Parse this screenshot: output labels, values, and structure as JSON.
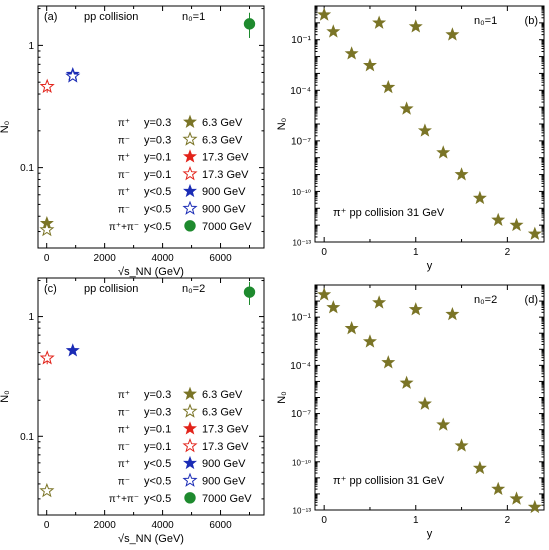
{
  "colors": {
    "olive": "#7a7426",
    "red": "#e2231a",
    "blue": "#1a2bb5",
    "green": "#1e8a2e",
    "axis": "#000000"
  },
  "chart_data": [
    {
      "id": "a",
      "type": "scatter",
      "panel_label": "(a)",
      "title": "pp collision",
      "annotation": "n₀=1",
      "xlabel": "√s_NN (GeV)",
      "ylabel": "N₀",
      "xlim": [
        -300,
        7500
      ],
      "ylim": [
        0.022,
        2.1
      ],
      "yscale": "log",
      "x_ticks": [
        0,
        2000,
        4000,
        6000
      ],
      "x_tick_labels": [
        "0",
        "2000",
        "4000",
        "6000"
      ],
      "y_ticks": [
        0.1,
        1
      ],
      "y_tick_labels": [
        "0.1",
        "1"
      ],
      "legend": {
        "position": "lower-right",
        "entries": [
          {
            "particle": "π⁺",
            "cut": "y=0.3",
            "energy": "6.3 GeV",
            "marker": "star",
            "fill": "olive"
          },
          {
            "particle": "π⁻",
            "cut": "y=0.3",
            "energy": "6.3 GeV",
            "marker": "star-open",
            "fill": "olive"
          },
          {
            "particle": "π⁺",
            "cut": "y=0.1",
            "energy": "17.3 GeV",
            "marker": "star",
            "fill": "red"
          },
          {
            "particle": "π⁻",
            "cut": "y=0.1",
            "energy": "17.3 GeV",
            "marker": "star-open",
            "fill": "red"
          },
          {
            "particle": "π⁺",
            "cut": "y<0.5",
            "energy": "900 GeV",
            "marker": "star",
            "fill": "blue"
          },
          {
            "particle": "π⁻",
            "cut": "y<0.5",
            "energy": "900 GeV",
            "marker": "star-open",
            "fill": "blue"
          },
          {
            "particle": "π⁺+π⁻",
            "cut": "y<0.5",
            "energy": "7000 GeV",
            "marker": "circle",
            "fill": "green"
          }
        ]
      },
      "points": [
        {
          "x": 6.3,
          "y": 0.035,
          "marker": "star",
          "fill": "olive",
          "err": 0
        },
        {
          "x": 6.3,
          "y": 0.031,
          "marker": "star-open",
          "fill": "olive",
          "err": 0
        },
        {
          "x": 17.3,
          "y": 0.46,
          "marker": "star-open",
          "fill": "red",
          "err": 0.05
        },
        {
          "x": 900,
          "y": 0.58,
          "marker": "star",
          "fill": "blue",
          "err": 0.03
        },
        {
          "x": 900,
          "y": 0.56,
          "marker": "star-open",
          "fill": "blue",
          "err": 0
        },
        {
          "x": 7000,
          "y": 1.5,
          "marker": "circle",
          "fill": "green",
          "err": 0.35
        }
      ]
    },
    {
      "id": "b",
      "type": "scatter",
      "panel_label": "(b)",
      "annotation": "n₀=1",
      "bottom_note": "π⁺    pp collision   31 GeV",
      "xlabel": "y",
      "ylabel": "N₀",
      "xlim": [
        -0.1,
        2.4
      ],
      "ylim": [
        1e-13,
        10
      ],
      "yscale": "log",
      "x_ticks": [
        0,
        1,
        2
      ],
      "x_tick_labels": [
        "0",
        "1",
        "2"
      ],
      "y_ticks": [
        1e-13,
        1e-10,
        1e-07,
        0.0001,
        0.1
      ],
      "y_tick_labels": [
        "10⁻¹³",
        "10⁻¹⁰",
        "10⁻⁷",
        "10⁻⁴",
        "10⁻¹"
      ],
      "series": [
        {
          "marker": "star",
          "fill": "olive",
          "x": [
            0,
            0.1,
            0.3,
            0.5,
            0.7,
            0.9,
            1.1,
            1.3,
            1.5,
            1.7,
            1.9,
            2.1,
            2.3
          ],
          "y": [
            3,
            0.3,
            0.015,
            0.003,
            0.00015,
            8e-06,
            4e-07,
            2e-08,
            1e-09,
            4e-11,
            2e-12,
            1e-12,
            3e-13
          ]
        },
        {
          "marker": "star",
          "fill": "olive",
          "x": [
            0.6,
            1.0,
            1.4
          ],
          "y": [
            1.0,
            0.6,
            0.2
          ]
        }
      ]
    },
    {
      "id": "c",
      "type": "scatter",
      "panel_label": "(c)",
      "title": "pp collision",
      "annotation": "n₀=2",
      "xlabel": "√s_NN (GeV)",
      "ylabel": "N₀",
      "xlim": [
        -300,
        7500
      ],
      "ylim": [
        0.022,
        2.1
      ],
      "yscale": "log",
      "x_ticks": [
        0,
        2000,
        4000,
        6000
      ],
      "x_tick_labels": [
        "0",
        "2000",
        "4000",
        "6000"
      ],
      "y_ticks": [
        0.1,
        1
      ],
      "y_tick_labels": [
        "0.1",
        "1"
      ],
      "legend": {
        "position": "lower-right",
        "entries": [
          {
            "particle": "π⁺",
            "cut": "y=0.3",
            "energy": "6.3 GeV",
            "marker": "star",
            "fill": "olive"
          },
          {
            "particle": "π⁻",
            "cut": "y=0.3",
            "energy": "6.3 GeV",
            "marker": "star-open",
            "fill": "olive"
          },
          {
            "particle": "π⁺",
            "cut": "y=0.1",
            "energy": "17.3 GeV",
            "marker": "star",
            "fill": "red"
          },
          {
            "particle": "π⁻",
            "cut": "y=0.1",
            "energy": "17.3 GeV",
            "marker": "star-open",
            "fill": "red"
          },
          {
            "particle": "π⁺",
            "cut": "y<0.5",
            "energy": "900 GeV",
            "marker": "star",
            "fill": "blue"
          },
          {
            "particle": "π⁻",
            "cut": "y<0.5",
            "energy": "900 GeV",
            "marker": "star-open",
            "fill": "blue"
          },
          {
            "particle": "π⁺+π⁻",
            "cut": "y<0.5",
            "energy": "7000 GeV",
            "marker": "circle",
            "fill": "green"
          }
        ]
      },
      "points": [
        {
          "x": 6.3,
          "y": 0.035,
          "marker": "star-open",
          "fill": "olive",
          "err": 0
        },
        {
          "x": 17.3,
          "y": 0.45,
          "marker": "star-open",
          "fill": "red",
          "err": 0.05
        },
        {
          "x": 900,
          "y": 0.52,
          "marker": "star",
          "fill": "blue",
          "err": 0.03
        },
        {
          "x": 7000,
          "y": 1.6,
          "marker": "circle",
          "fill": "green",
          "err": 0.35
        }
      ]
    },
    {
      "id": "d",
      "type": "scatter",
      "panel_label": "(d)",
      "annotation": "n₀=2",
      "bottom_note": "π⁺     pp collision   31 GeV",
      "xlabel": "y",
      "ylabel": "N₀",
      "xlim": [
        -0.1,
        2.4
      ],
      "ylim": [
        1e-13,
        10
      ],
      "yscale": "log",
      "x_ticks": [
        0,
        1,
        2
      ],
      "x_tick_labels": [
        "0",
        "1",
        "2"
      ],
      "y_ticks": [
        1e-13,
        1e-10,
        1e-07,
        0.0001,
        0.1
      ],
      "y_tick_labels": [
        "10⁻¹³",
        "10⁻¹⁰",
        "10⁻⁷",
        "10⁻⁴",
        "10⁻¹"
      ],
      "series": [
        {
          "marker": "star",
          "fill": "olive",
          "x": [
            0,
            0.1,
            0.3,
            0.5,
            0.7,
            0.9,
            1.1,
            1.3,
            1.5,
            1.7,
            1.9,
            2.1,
            2.3
          ],
          "y": [
            2.5,
            0.4,
            0.02,
            0.003,
            0.00015,
            8e-06,
            4e-07,
            2e-08,
            1e-09,
            4e-11,
            2e-12,
            5e-13,
            1.5e-13
          ]
        },
        {
          "marker": "star",
          "fill": "olive",
          "x": [
            0.6,
            1.0,
            1.4
          ],
          "y": [
            0.8,
            0.3,
            0.15
          ]
        }
      ]
    }
  ]
}
